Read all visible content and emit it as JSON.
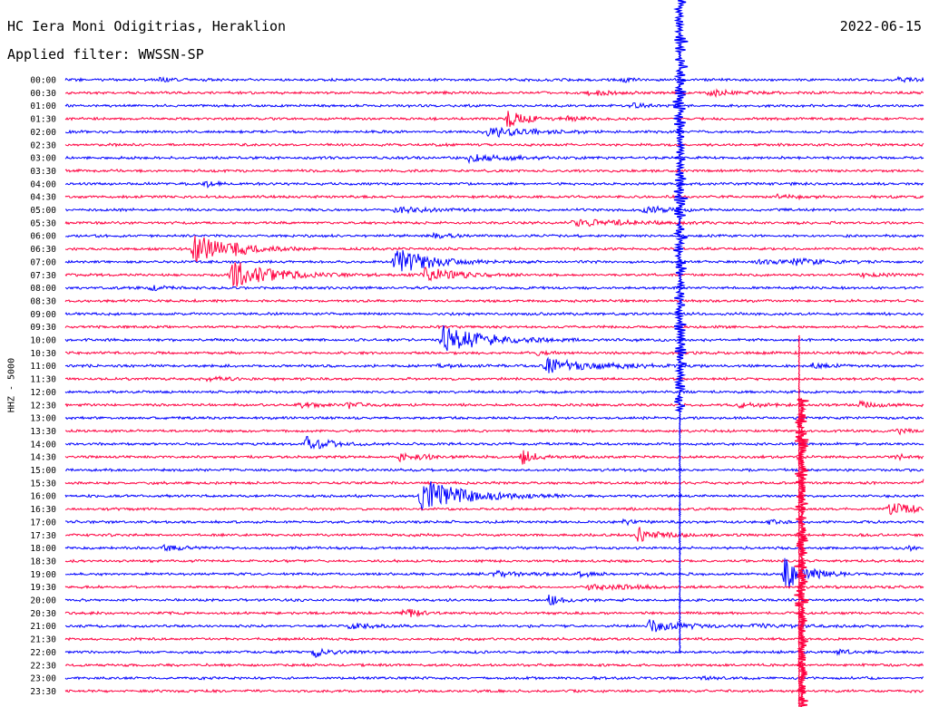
{
  "header": {
    "station": "HC Iera Moni Odigitrias, Heraklion",
    "filter": "Applied filter: WWSSN-SP",
    "date": "2022-06-15"
  },
  "side_label": "HHZ - 5000",
  "colors": {
    "odd_rows": "#0000ff",
    "even_rows": "#ff0040",
    "text": "#000000"
  },
  "chart_data": {
    "type": "line",
    "title": "HC Iera Moni Odigitrias, Heraklion",
    "subtitle": "2022-06-15",
    "ylabel": "HHZ - 5000",
    "row_labels": [
      "00:00",
      "00:30",
      "01:00",
      "01:30",
      "02:00",
      "02:30",
      "03:00",
      "03:30",
      "04:00",
      "04:30",
      "05:00",
      "05:30",
      "06:00",
      "06:30",
      "07:00",
      "07:30",
      "08:00",
      "08:30",
      "09:00",
      "09:30",
      "10:00",
      "10:30",
      "11:00",
      "11:30",
      "12:00",
      "12:30",
      "13:00",
      "13:30",
      "14:00",
      "14:30",
      "15:00",
      "15:30",
      "16:00",
      "16:30",
      "17:00",
      "17:30",
      "18:00",
      "18:30",
      "19:00",
      "19:30",
      "20:00",
      "20:30",
      "21:00",
      "21:30",
      "22:00",
      "22:30",
      "23:00",
      "23:30"
    ],
    "events": [
      {
        "row": 0,
        "x": 0.11,
        "a": 0.4,
        "d": 0.01
      },
      {
        "row": 0,
        "x": 0.65,
        "a": 0.3,
        "d": 0.01
      },
      {
        "row": 0,
        "x": 0.97,
        "a": 0.3,
        "d": 0.03
      },
      {
        "row": 1,
        "x": 0.61,
        "a": 0.45,
        "d": 0.02
      },
      {
        "row": 1,
        "x": 0.75,
        "a": 0.5,
        "d": 0.02
      },
      {
        "row": 2,
        "x": 0.66,
        "a": 0.4,
        "d": 0.01
      },
      {
        "row": 3,
        "x": 0.515,
        "a": 1.3,
        "d": 0.02
      },
      {
        "row": 3,
        "x": 0.585,
        "a": 0.35,
        "d": 0.01
      },
      {
        "row": 4,
        "x": 0.49,
        "a": 0.9,
        "d": 0.04
      },
      {
        "row": 6,
        "x": 0.47,
        "a": 0.6,
        "d": 0.04
      },
      {
        "row": 8,
        "x": 0.165,
        "a": 0.4,
        "d": 0.01
      },
      {
        "row": 9,
        "x": 0.83,
        "a": 0.3,
        "d": 0.02
      },
      {
        "row": 10,
        "x": 0.385,
        "a": 0.5,
        "d": 0.03
      },
      {
        "row": 10,
        "x": 0.675,
        "a": 0.6,
        "d": 0.02
      },
      {
        "row": 11,
        "x": 0.59,
        "a": 0.55,
        "d": 0.07
      },
      {
        "row": 12,
        "x": 0.43,
        "a": 0.35,
        "d": 0.02
      },
      {
        "row": 13,
        "x": 0.15,
        "a": 2.6,
        "d": 0.03
      },
      {
        "row": 13,
        "x": 0.195,
        "a": 0.6,
        "d": 0.01
      },
      {
        "row": 14,
        "x": 0.385,
        "a": 2.4,
        "d": 0.03
      },
      {
        "row": 14,
        "x": 0.8,
        "a": 0.3,
        "d": 0.05
      },
      {
        "row": 14,
        "x": 0.85,
        "a": 0.5,
        "d": 0.02
      },
      {
        "row": 15,
        "x": 0.195,
        "a": 2.2,
        "d": 0.04
      },
      {
        "row": 15,
        "x": 0.418,
        "a": 1.2,
        "d": 0.03
      },
      {
        "row": 15,
        "x": 0.93,
        "a": 0.35,
        "d": 0.02
      },
      {
        "row": 16,
        "x": 0.1,
        "a": 0.5,
        "d": 0.01
      },
      {
        "row": 20,
        "x": 0.44,
        "a": 2.4,
        "d": 0.04
      },
      {
        "row": 21,
        "x": 0.55,
        "a": 0.35,
        "d": 0.01
      },
      {
        "row": 22,
        "x": 0.56,
        "a": 1.2,
        "d": 0.05
      },
      {
        "row": 22,
        "x": 0.43,
        "a": 0.4,
        "d": 0.01
      },
      {
        "row": 22,
        "x": 0.87,
        "a": 0.35,
        "d": 0.02
      },
      {
        "row": 23,
        "x": 0.165,
        "a": 0.3,
        "d": 0.02
      },
      {
        "row": 25,
        "x": 0.275,
        "a": 0.45,
        "d": 0.01
      },
      {
        "row": 25,
        "x": 0.33,
        "a": 0.55,
        "d": 0.01
      },
      {
        "row": 25,
        "x": 0.785,
        "a": 0.4,
        "d": 0.02
      },
      {
        "row": 25,
        "x": 0.925,
        "a": 0.5,
        "d": 0.02
      },
      {
        "row": 27,
        "x": 0.97,
        "a": 0.35,
        "d": 0.02
      },
      {
        "row": 28,
        "x": 0.28,
        "a": 1.3,
        "d": 0.02
      },
      {
        "row": 29,
        "x": 0.39,
        "a": 0.6,
        "d": 0.03
      },
      {
        "row": 29,
        "x": 0.533,
        "a": 1.2,
        "d": 0.01
      },
      {
        "row": 29,
        "x": 0.97,
        "a": 0.5,
        "d": 0.01
      },
      {
        "row": 31,
        "x": 1.0,
        "a": 0.6,
        "d": 0.01
      },
      {
        "row": 32,
        "x": 0.415,
        "a": 2.9,
        "d": 0.04
      },
      {
        "row": 33,
        "x": 0.96,
        "a": 1.2,
        "d": 0.02
      },
      {
        "row": 34,
        "x": 0.65,
        "a": 0.35,
        "d": 0.01
      },
      {
        "row": 34,
        "x": 0.82,
        "a": 0.35,
        "d": 0.01
      },
      {
        "row": 35,
        "x": 0.667,
        "a": 1.2,
        "d": 0.02
      },
      {
        "row": 36,
        "x": 0.115,
        "a": 0.6,
        "d": 0.01
      },
      {
        "row": 36,
        "x": 0.98,
        "a": 0.4,
        "d": 0.01
      },
      {
        "row": 38,
        "x": 0.838,
        "a": 2.6,
        "d": 0.02
      },
      {
        "row": 38,
        "x": 0.5,
        "a": 0.4,
        "d": 0.03
      },
      {
        "row": 38,
        "x": 0.6,
        "a": 0.35,
        "d": 0.01
      },
      {
        "row": 39,
        "x": 0.61,
        "a": 0.4,
        "d": 0.05
      },
      {
        "row": 40,
        "x": 0.564,
        "a": 0.9,
        "d": 0.01
      },
      {
        "row": 41,
        "x": 0.395,
        "a": 0.8,
        "d": 0.01
      },
      {
        "row": 42,
        "x": 0.33,
        "a": 0.5,
        "d": 0.02
      },
      {
        "row": 42,
        "x": 0.68,
        "a": 1.0,
        "d": 0.03
      },
      {
        "row": 42,
        "x": 0.8,
        "a": 0.3,
        "d": 0.03
      },
      {
        "row": 44,
        "x": 0.29,
        "a": 0.8,
        "d": 0.01
      },
      {
        "row": 44,
        "x": 0.9,
        "a": 0.4,
        "d": 0.01
      },
      {
        "row": 46,
        "x": 0.74,
        "a": 0.3,
        "d": 0.01
      }
    ],
    "spikes": [
      {
        "x": 0.716,
        "from": -10,
        "to": 454,
        "color": "blue"
      },
      {
        "x": 0.716,
        "from": 454,
        "to": 720,
        "color": "blue",
        "thin": true
      },
      {
        "x": 0.855,
        "from": 370,
        "to": 780,
        "color": "red",
        "thin": true
      },
      {
        "x": 0.858,
        "from": 440,
        "to": 780,
        "color": "red"
      }
    ],
    "grid": false,
    "legend": "none"
  }
}
